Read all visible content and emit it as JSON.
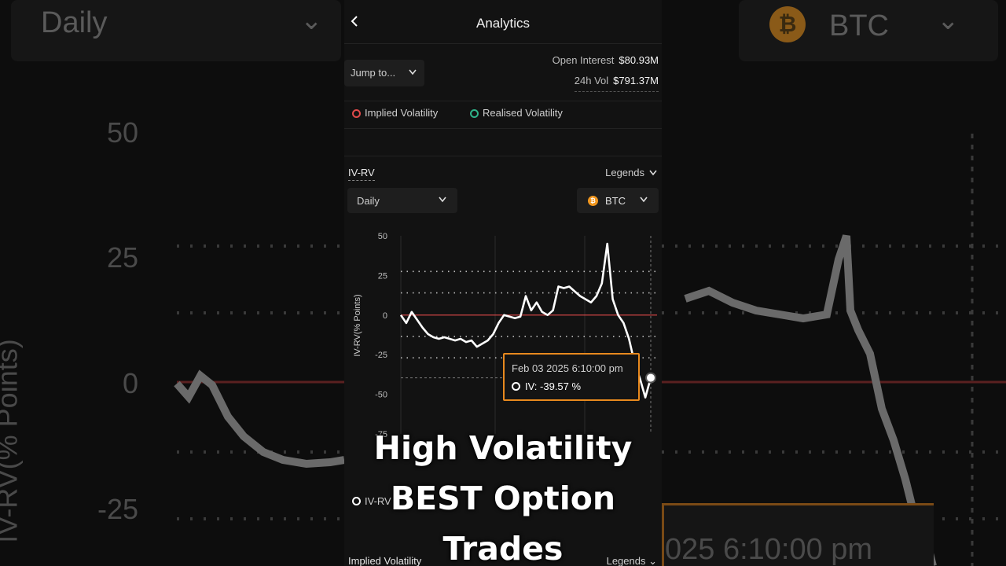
{
  "header": {
    "title": "Analytics"
  },
  "jump_to": {
    "label": "Jump to..."
  },
  "stats": {
    "open_interest_label": "Open Interest",
    "open_interest_value": "$80.93M",
    "vol_label": "24h Vol",
    "vol_value": "$791.37M"
  },
  "top_legend": {
    "items": [
      {
        "label": "Implied Volatility",
        "color": "#e04a4a"
      },
      {
        "label": "Realised Volatility",
        "color": "#2fb38a"
      }
    ]
  },
  "section": {
    "title": "IV-RV",
    "legends_label": "Legends"
  },
  "filters": {
    "period": "Daily",
    "asset": "BTC",
    "asset_icon": "bitcoin-icon"
  },
  "chart_data": {
    "type": "line",
    "ylabel": "IV-RV(% Points)",
    "yticks": [
      "50",
      "25",
      "0",
      "-25",
      "-50",
      "-75"
    ],
    "ylim": [
      -75,
      50
    ],
    "series": [
      {
        "name": "IV-RV",
        "color": "#ffffff",
        "values": [
          0,
          -5,
          2,
          -3,
          -8,
          -12,
          -14,
          -15,
          -14,
          -15,
          -16,
          -15,
          -17,
          -16,
          -20,
          -18,
          -16,
          -12,
          -5,
          0,
          -1,
          -2,
          -1,
          12,
          3,
          8,
          2,
          0,
          3,
          18,
          17,
          18,
          15,
          12,
          10,
          8,
          12,
          20,
          45,
          10,
          0,
          -5,
          -15,
          -30,
          -40,
          -52,
          -39.57
        ]
      }
    ],
    "reference_line": {
      "value": 0,
      "color": "#e04a4a"
    },
    "grid": true
  },
  "tooltip": {
    "date": "Feb 03 2025 6:10:00 pm",
    "value_text": "IV: -39.57 %"
  },
  "bottom": {
    "series_legend": "IV-RV",
    "next_section_title": "Implied Volatility",
    "next_legends_label": "Legends"
  },
  "background": {
    "period": "Daily",
    "asset": "BTC",
    "yticks": [
      "50",
      "25",
      "0",
      "-25"
    ],
    "ylabel": "IV-RV(% Points)",
    "tooltip_text": "025 6:10:00 pm"
  },
  "caption": {
    "lines": [
      "High Volatility",
      "BEST Option",
      "Trades"
    ]
  },
  "colors": {
    "accent": "#e8891e",
    "panel_bg": "#121212",
    "control_bg": "#1e1e1e"
  }
}
